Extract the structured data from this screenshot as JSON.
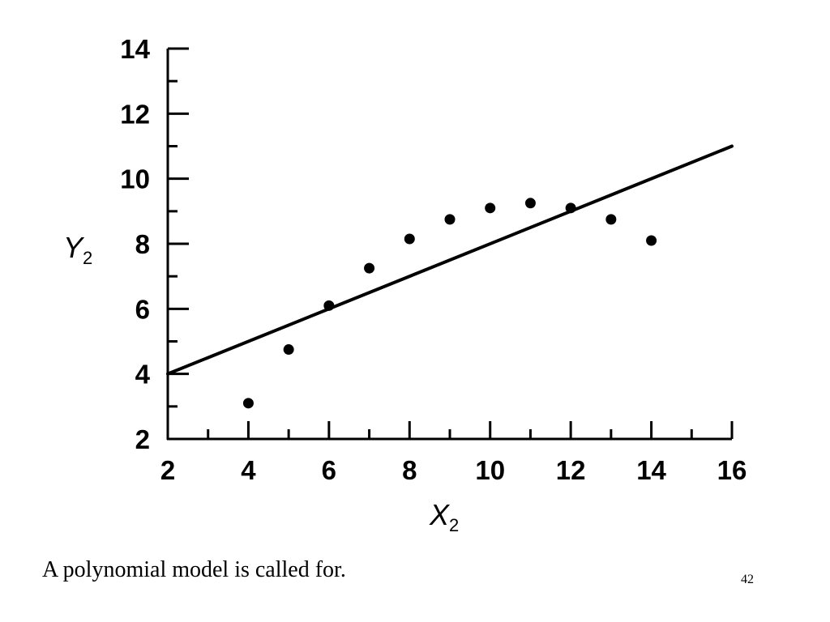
{
  "chart_data": {
    "type": "scatter",
    "xlabel": "X",
    "xlabel_sub": "2",
    "ylabel": "Y",
    "ylabel_sub": "2",
    "xlim": [
      2,
      16
    ],
    "ylim": [
      2,
      14
    ],
    "x_ticks": [
      2,
      4,
      6,
      8,
      10,
      12,
      14,
      16
    ],
    "y_ticks": [
      2,
      4,
      6,
      8,
      10,
      12,
      14
    ],
    "grid": false,
    "series": [
      {
        "type": "scatter",
        "points": [
          {
            "x": 4,
            "y": 3.1
          },
          {
            "x": 5,
            "y": 4.75
          },
          {
            "x": 6,
            "y": 6.1
          },
          {
            "x": 7,
            "y": 7.25
          },
          {
            "x": 8,
            "y": 8.15
          },
          {
            "x": 9,
            "y": 8.75
          },
          {
            "x": 10,
            "y": 9.1
          },
          {
            "x": 11,
            "y": 9.25
          },
          {
            "x": 12,
            "y": 9.1
          },
          {
            "x": 13,
            "y": 8.75
          },
          {
            "x": 14,
            "y": 8.1
          }
        ]
      },
      {
        "type": "line",
        "points": [
          {
            "x": 2,
            "y": 4
          },
          {
            "x": 16,
            "y": 11
          }
        ]
      }
    ]
  },
  "caption": "A polynomial model is called for.",
  "page_number": "42"
}
